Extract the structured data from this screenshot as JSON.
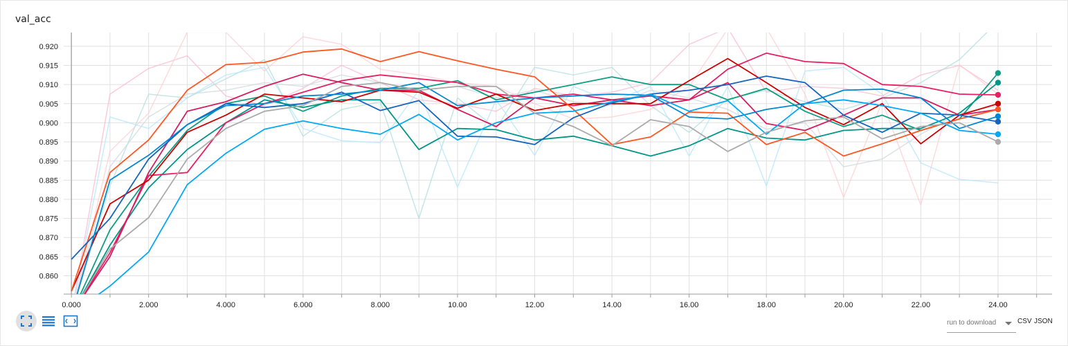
{
  "card": {
    "title": "val_acc"
  },
  "toolbar": {
    "fit_icon": "fit-domain-icon",
    "log_icon": "log-scale-icon",
    "range_icon": "select-range-icon"
  },
  "download": {
    "placeholder": "run to download",
    "csv_label": "CSV",
    "json_label": "JSON"
  },
  "colors": {
    "grid": "#e0e0e0",
    "axis": "#9e9e9e",
    "zero_line": "#aaaaaa",
    "tick_text": "#212121"
  },
  "chart_data": {
    "type": "line",
    "title": "val_acc",
    "xlim": [
      -0.2,
      25.4
    ],
    "ylim": [
      0.8552,
      0.9236
    ],
    "x_ticks": [
      0,
      2,
      4,
      6,
      8,
      10,
      12,
      14,
      16,
      18,
      20,
      22,
      24
    ],
    "x_tick_labels": [
      "0.000",
      "2.000",
      "4.000",
      "6.000",
      "8.000",
      "10.00",
      "12.00",
      "14.00",
      "16.00",
      "18.00",
      "20.00",
      "22.00",
      "24.00"
    ],
    "y_ticks": [
      0.86,
      0.865,
      0.87,
      0.875,
      0.88,
      0.885,
      0.89,
      0.895,
      0.9,
      0.905,
      0.91,
      0.915,
      0.92
    ],
    "y_tick_labels": [
      "0.860",
      "0.865",
      "0.870",
      "0.875",
      "0.880",
      "0.885",
      "0.890",
      "0.895",
      "0.900",
      "0.905",
      "0.910",
      "0.915",
      "0.920"
    ],
    "grid": true,
    "x": [
      0,
      1,
      2,
      3,
      4,
      5,
      6,
      7,
      8,
      9,
      10,
      11,
      12,
      13,
      14,
      15,
      16,
      17,
      18,
      19,
      20,
      21,
      22,
      23,
      24
    ],
    "series": [
      {
        "color": "#0f9d84",
        "values": [
          0.85,
          0.872,
          0.886,
          0.898,
          0.905,
          0.907,
          0.903,
          0.907,
          0.909,
          0.909,
          0.911,
          0.906,
          0.908,
          0.91,
          0.912,
          0.91,
          0.91,
          0.906,
          0.909,
          0.903,
          0.899,
          0.902,
          0.898,
          0.901,
          0.913
        ]
      },
      {
        "color": "#009688",
        "values": [
          0.85,
          0.868,
          0.883,
          0.893,
          0.9,
          0.906,
          0.904,
          0.906,
          0.906,
          0.893,
          0.8985,
          0.8982,
          0.8955,
          0.8965,
          0.894,
          0.8913,
          0.894,
          0.8985,
          0.896,
          0.8955,
          0.898,
          0.8985,
          0.8985,
          0.9025,
          0.9105
        ]
      },
      {
        "color": "#e91e63",
        "values": [
          0.85,
          0.866,
          0.8862,
          0.887,
          0.9,
          0.905,
          0.908,
          0.911,
          0.9125,
          0.9115,
          0.9105,
          0.9075,
          0.9065,
          0.9075,
          0.906,
          0.907,
          0.906,
          0.914,
          0.9182,
          0.916,
          0.9155,
          0.91,
          0.9095,
          0.9075,
          0.9073
        ]
      },
      {
        "color": "#d81b60",
        "values": [
          0.85,
          0.865,
          0.887,
          0.903,
          0.9055,
          0.9095,
          0.9127,
          0.9105,
          0.9085,
          0.9085,
          0.9035,
          0.899,
          0.9065,
          0.9045,
          0.906,
          0.9045,
          0.906,
          0.9105,
          0.8998,
          0.898,
          0.902,
          0.9065,
          0.9065,
          0.902,
          0.9035
        ]
      },
      {
        "color": "#cc0000",
        "values": [
          0.856,
          0.8788,
          0.885,
          0.8975,
          0.902,
          0.9075,
          0.9065,
          0.9055,
          0.9085,
          0.908,
          0.9038,
          0.9075,
          0.9032,
          0.905,
          0.905,
          0.905,
          0.911,
          0.9168,
          0.9105,
          0.904,
          0.8995,
          0.905,
          0.8945,
          0.902,
          0.905
        ]
      },
      {
        "color": "#ff5722",
        "values": [
          0.856,
          0.887,
          0.8955,
          0.9085,
          0.9152,
          0.9158,
          0.9185,
          0.9193,
          0.916,
          0.9186,
          0.9162,
          0.914,
          0.912,
          0.9035,
          0.8943,
          0.8963,
          0.9028,
          0.9025,
          0.8943,
          0.8975,
          0.8913,
          0.8945,
          0.898,
          0.901,
          0.9035
        ]
      },
      {
        "color": "#1565c0",
        "values": [
          0.8643,
          0.875,
          0.8905,
          0.8995,
          0.905,
          0.904,
          0.905,
          0.908,
          0.9032,
          0.9058,
          0.8965,
          0.8963,
          0.8943,
          0.9013,
          0.9052,
          0.9075,
          0.9085,
          0.91,
          0.9122,
          0.9105,
          0.902,
          0.8975,
          0.9025,
          0.902,
          0.9003
        ]
      },
      {
        "color": "#0288d1",
        "values": [
          0.85,
          0.885,
          0.8915,
          0.8995,
          0.9045,
          0.905,
          0.907,
          0.9075,
          0.9085,
          0.9105,
          0.9045,
          0.9055,
          0.9065,
          0.907,
          0.9075,
          0.9072,
          0.9015,
          0.901,
          0.9035,
          0.905,
          0.9085,
          0.9088,
          0.9065,
          0.8985,
          0.9017
        ]
      },
      {
        "color": "#03a9f4",
        "values": [
          0.85,
          0.8573,
          0.8662,
          0.8838,
          0.892,
          0.8983,
          0.9005,
          0.8985,
          0.897,
          0.9022,
          0.8955,
          0.9,
          0.9025,
          0.903,
          0.9055,
          0.9075,
          0.903,
          0.9058,
          0.897,
          0.905,
          0.906,
          0.9045,
          0.9025,
          0.898,
          0.897
        ]
      },
      {
        "color": "#aaaaaa",
        "values": [
          0.85,
          0.867,
          0.8752,
          0.8905,
          0.8985,
          0.903,
          0.9045,
          0.9095,
          0.9105,
          0.9085,
          0.9095,
          0.9095,
          0.9025,
          0.899,
          0.894,
          0.9008,
          0.899,
          0.8925,
          0.8975,
          0.9005,
          0.9015,
          0.8958,
          0.899,
          0.9,
          0.895
        ]
      },
      {
        "color": "#f8bbd0",
        "values": [
          0.85,
          0.9075,
          0.9142,
          0.9175,
          0.907,
          0.9045,
          0.909,
          0.915,
          0.9105,
          0.906,
          0.905,
          0.903,
          0.909,
          0.907,
          0.908,
          0.9105,
          0.9205,
          0.9248,
          0.908,
          0.9095,
          0.909,
          0.907,
          0.9125,
          0.915,
          0.9085
        ]
      },
      {
        "color": "#ffcdd2",
        "values": [
          0.85,
          0.8925,
          0.9025,
          0.9237,
          0.9237,
          0.9135,
          0.9225,
          0.9205,
          0.914,
          0.9125,
          0.9105,
          0.9095,
          0.905,
          0.901,
          0.9015,
          0.9035,
          0.9095,
          0.9245,
          0.9248,
          0.9075,
          0.8805,
          0.9055,
          0.8785,
          0.9152,
          0.9075
        ]
      },
      {
        "color": "#b2dfdb",
        "values": [
          0.85,
          0.8835,
          0.9075,
          0.9065,
          0.9115,
          0.9165,
          0.8965,
          0.9035,
          0.9055,
          0.875,
          0.9065,
          0.8985,
          0.9145,
          0.9125,
          0.9145,
          0.9045,
          0.8975,
          0.9062,
          0.9085,
          0.9055,
          0.9035,
          0.9065,
          0.9105,
          0.9165,
          0.9265
        ]
      },
      {
        "color": "#b3e5fc",
        "values": [
          0.85,
          0.9015,
          0.8985,
          0.9065,
          0.9125,
          0.9145,
          0.8985,
          0.8953,
          0.8948,
          0.9085,
          0.8832,
          0.906,
          0.8915,
          0.9095,
          0.9055,
          0.9095,
          0.8913,
          0.9095,
          0.8835,
          0.9135,
          0.9145,
          0.9075,
          0.8895,
          0.8852,
          0.8843
        ]
      },
      {
        "color": "#cfd8dc",
        "values": [
          0.85,
          0.8885,
          0.9015,
          0.9075,
          0.9085,
          0.9105,
          0.9095,
          0.9125,
          0.9105,
          0.9085,
          0.9095,
          0.9065,
          0.9085,
          0.9055,
          0.9045,
          0.9085,
          0.9065,
          0.9035,
          0.8983,
          0.9,
          0.8885,
          0.8905,
          0.897,
          0.9025,
          0.9045
        ]
      }
    ]
  }
}
